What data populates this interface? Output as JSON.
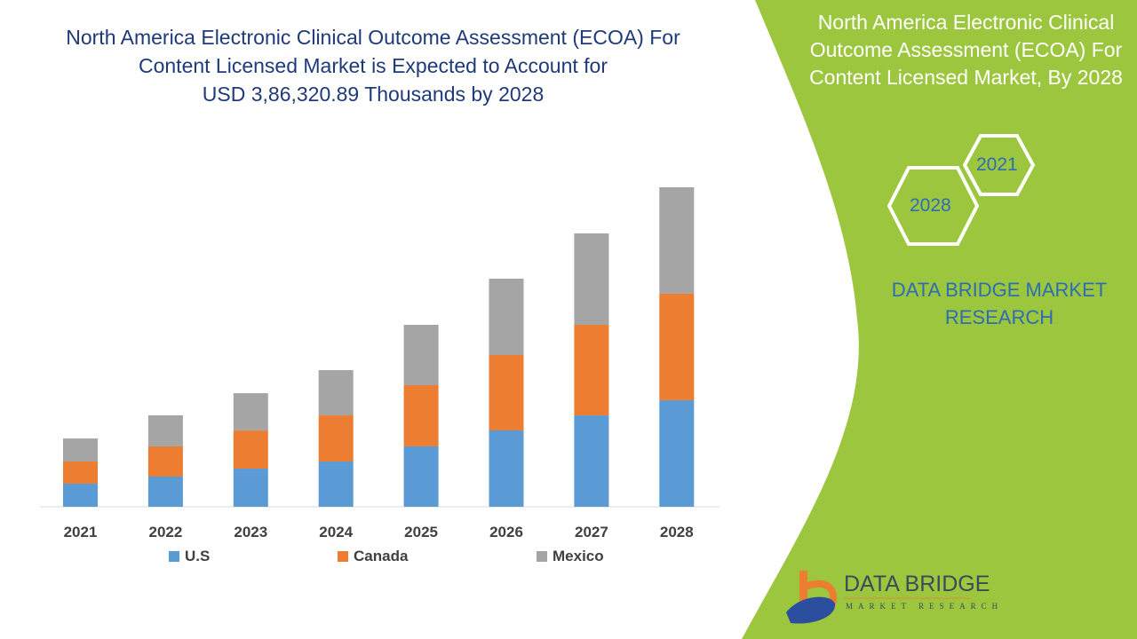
{
  "header": {
    "title_lines": [
      "North America Electronic Clinical Outcome Assessment (ECOA) For",
      "Content Licensed Market is Expected to Account for",
      "USD 3,86,320.89 Thousands by 2028"
    ]
  },
  "side_panel": {
    "title_lines": [
      "North America Electronic Clinical",
      "Outcome Assessment (ECOA) For",
      "Content Licensed Market, By 2028"
    ],
    "hex_years": [
      "2021",
      "2028"
    ],
    "brand_lines": [
      "DATA BRIDGE MARKET",
      "RESEARCH"
    ],
    "logo_text": "DATA BRIDGE",
    "logo_subtext": "MARKET RESEARCH",
    "panel_color": "#9cc63d"
  },
  "chart_data": {
    "type": "bar",
    "stacked": true,
    "categories": [
      "2021",
      "2022",
      "2023",
      "2024",
      "2025",
      "2026",
      "2027",
      "2028"
    ],
    "series": [
      {
        "name": "U.S",
        "color": "#5b9bd5",
        "values": [
          27900,
          36500,
          46100,
          54700,
          73000,
          92300,
          110500,
          128800
        ]
      },
      {
        "name": "Canada",
        "color": "#ed7d31",
        "values": [
          26800,
          36500,
          46100,
          55800,
          74000,
          91200,
          109500,
          128800
        ]
      },
      {
        "name": "Mexico",
        "color": "#a5a5a5",
        "values": [
          27900,
          37600,
          45100,
          54700,
          73000,
          92300,
          110500,
          128700
        ]
      }
    ],
    "title": "",
    "xlabel": "",
    "ylabel": "",
    "ylim": [
      0,
      400000
    ],
    "grid": false,
    "y_axis_shown": false,
    "legend_position": "bottom"
  }
}
